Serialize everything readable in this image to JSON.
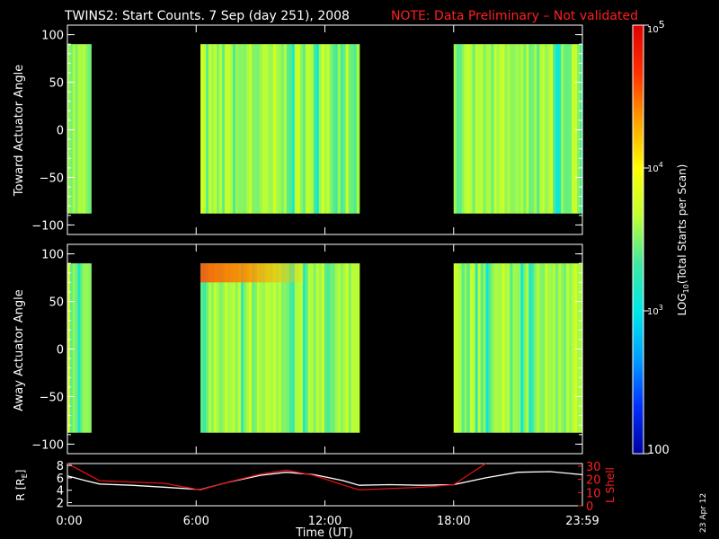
{
  "title_prefix": "TWINS2: Start Counts.  7 Sep (day 251), 2008",
  "title_note": "NOTE: Data Preliminary – Not validated",
  "date_stamp": "23 Apr 12",
  "chart_data": [
    {
      "type": "heatmap",
      "ylabel": "Toward Actuator Angle",
      "ylim": [
        -110,
        110
      ],
      "y_ticks": [
        "100",
        "50",
        "0",
        "−50",
        "−100"
      ],
      "y_tick_values": [
        100,
        50,
        0,
        -50,
        -100
      ],
      "angle_range": [
        -88,
        90
      ],
      "data_intervals_hours": [
        [
          0,
          1.1
        ],
        [
          6.2,
          13.6
        ],
        [
          18.0,
          24.0
        ]
      ],
      "units": "LOG10(Total Starts per Scan)",
      "dominant_value": 4000
    },
    {
      "type": "heatmap",
      "ylabel": "Away Actuator Angle",
      "ylim": [
        -110,
        110
      ],
      "y_ticks": [
        "100",
        "50",
        "0",
        "−50",
        "−100"
      ],
      "y_tick_values": [
        100,
        50,
        0,
        -50,
        -100
      ],
      "angle_range": [
        -88,
        90
      ],
      "data_intervals_hours": [
        [
          0,
          1.1
        ],
        [
          6.2,
          13.6
        ],
        [
          18.0,
          24.0
        ]
      ],
      "units": "LOG10(Total Starts per Scan)",
      "hot_spot": {
        "time_hours": [
          6.2,
          8.0
        ],
        "angle": [
          70,
          90
        ],
        "value": 50000
      }
    },
    {
      "type": "line",
      "xlabel": "Time (UT)",
      "x_ticks": [
        "0:00",
        "6:00",
        "12:00",
        "18:00",
        "23:59"
      ],
      "x_tick_values": [
        0,
        6,
        12,
        18,
        24
      ],
      "left_axis": {
        "label": "R [R",
        "label_sub": "E",
        "label_end": "]",
        "ticks": [
          "8",
          "6",
          "4",
          "2"
        ],
        "tick_values": [
          8,
          6,
          4,
          2
        ],
        "ylim": [
          1.5,
          8.3
        ]
      },
      "right_axis": {
        "label": "L Shell",
        "ticks": [
          "30",
          "20",
          "10",
          "0"
        ],
        "tick_values": [
          30,
          20,
          10,
          0
        ],
        "ylim": [
          0,
          32
        ]
      },
      "series": [
        {
          "axis": "left",
          "color": "#ffffff",
          "x": [
            0,
            0.8,
            1.5,
            3,
            4.5,
            6.2,
            7.5,
            9,
            10.2,
            11.5,
            12.8,
            13.6,
            15,
            16.5,
            18,
            19.5,
            21,
            22.5,
            24
          ],
          "y": [
            6.3,
            5.6,
            5.0,
            4.8,
            4.5,
            4.1,
            5.3,
            6.4,
            6.9,
            6.5,
            5.6,
            4.8,
            4.9,
            4.8,
            4.9,
            6.0,
            6.9,
            7.0,
            6.5
          ]
        },
        {
          "axis": "right",
          "color": "#e01010",
          "x": [
            0,
            1.5,
            3,
            4.5,
            6.2,
            7.5,
            9,
            10.2,
            11.5,
            12.8,
            13.6,
            15,
            16.5,
            18,
            19.5
          ],
          "y": [
            32,
            19,
            18,
            17,
            12,
            18,
            24,
            27,
            23,
            16,
            12,
            13,
            14,
            16,
            32
          ]
        }
      ]
    }
  ],
  "colorbar": {
    "label_prefix": "LOG",
    "label_sub": "10",
    "label_rest": "(Total Starts per Scan)",
    "ticks": [
      {
        "base": "10",
        "exp": "5",
        "value": 100000
      },
      {
        "base": "10",
        "exp": "4",
        "value": 10000
      },
      {
        "base": "10",
        "exp": "3",
        "value": 1000
      },
      {
        "base": "100",
        "exp": "",
        "value": 100
      }
    ],
    "range": [
      100,
      100000
    ],
    "colors": [
      "#0000a0",
      "#0030ff",
      "#00a0ff",
      "#00e8e8",
      "#40e8a0",
      "#c0ff30",
      "#ffff00",
      "#ffa000",
      "#ff3000",
      "#e00000"
    ]
  }
}
